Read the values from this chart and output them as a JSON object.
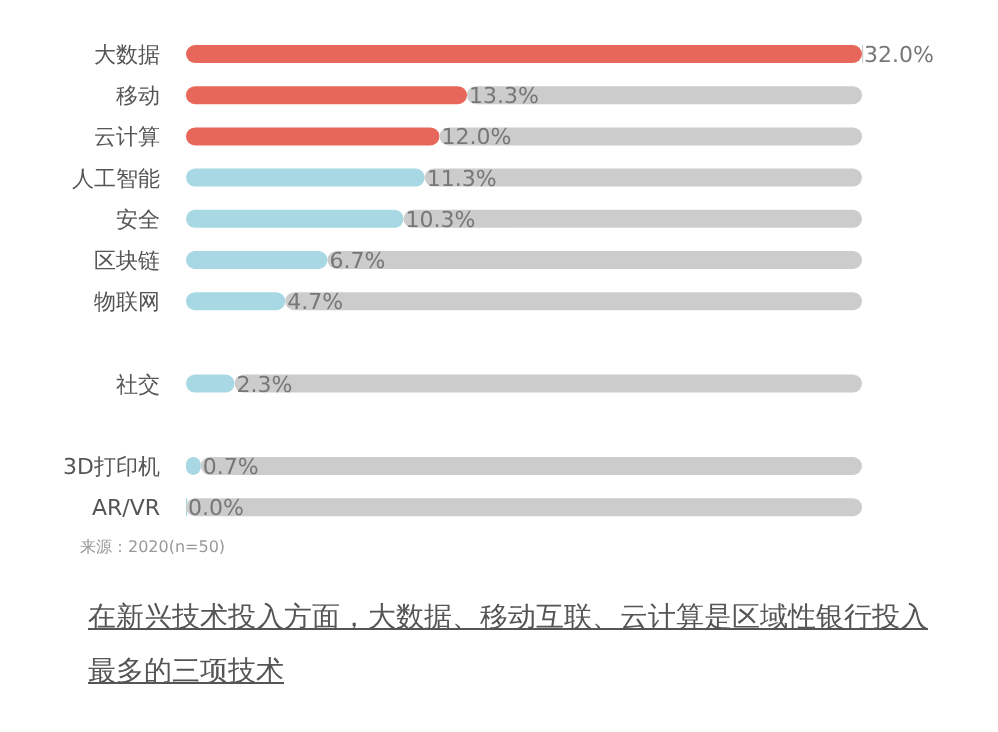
{
  "chart_data": {
    "type": "bar",
    "orientation": "horizontal",
    "stacked": true,
    "categories": [
      "大数据",
      "移动",
      "云计算",
      "人工智能",
      "安全",
      "区块链",
      "物联网",
      null,
      "社交",
      null,
      "3D打印机",
      "AR/VR"
    ],
    "series": [
      {
        "colors": [
          "#e8675b",
          "#e8675b",
          "#e8675b",
          "#a8d8e3",
          "#a8d8e3",
          "#a8d8e3",
          "#a8d8e3",
          null,
          "#a8d8e3",
          null,
          "#a8d8e3",
          "#a8d8e3"
        ],
        "values": [
          32.0,
          13.3,
          12.0,
          11.3,
          10.3,
          6.7,
          4.7,
          null,
          2.3,
          null,
          0.7,
          0.0
        ],
        "value_labels": [
          "32.0%",
          "13.3%",
          "12.0%",
          "11.3%",
          "10.3%",
          "6.7%",
          "4.7%",
          null,
          "2.3%",
          null,
          "0.7%",
          "0.0%"
        ]
      },
      {
        "color": "#cccccc",
        "values": [
          0,
          18.7,
          20.0,
          20.7,
          21.7,
          25.3,
          27.3,
          null,
          29.7,
          null,
          31.3,
          32.0
        ]
      }
    ],
    "annotations": [
      "来源：2020(n=50)",
      "在新兴技术投入方面，大数据、移动互联、云计算是区域性银行投入最多的三项技术"
    ]
  }
}
